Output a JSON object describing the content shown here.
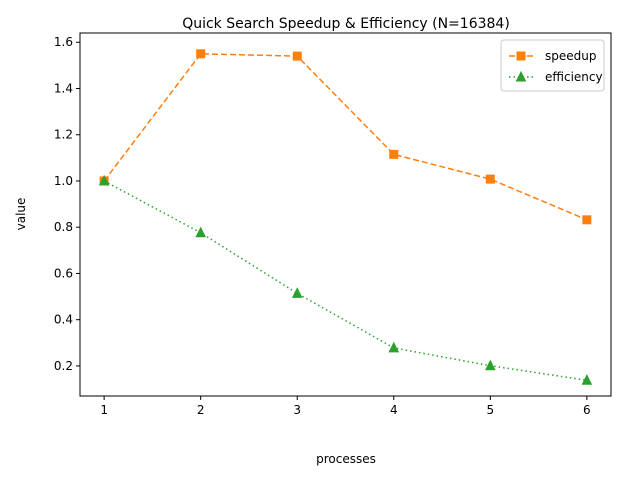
{
  "chart_data": {
    "type": "line",
    "title": "Quick Search Speedup & Efficiency (N=16384)",
    "xlabel": "processes",
    "ylabel": "value",
    "x": [
      1,
      2,
      3,
      4,
      5,
      6
    ],
    "x_ticks": [
      "1",
      "2",
      "3",
      "4",
      "5",
      "6"
    ],
    "y_ticks": [
      "0.2",
      "0.4",
      "0.6",
      "0.8",
      "1.0",
      "1.2",
      "1.4",
      "1.6"
    ],
    "xlim": [
      0.75,
      6.25
    ],
    "ylim": [
      0.07,
      1.64
    ],
    "grid": false,
    "legend_position": "top-right",
    "series": [
      {
        "name": "speedup",
        "values": [
          1.0,
          1.55,
          1.54,
          1.115,
          1.008,
          0.832
        ],
        "color": "#ff7f0e",
        "marker": "square",
        "linestyle": "dashed"
      },
      {
        "name": "efficiency",
        "values": [
          1.0,
          0.776,
          0.514,
          0.278,
          0.201,
          0.138
        ],
        "color": "#2ca02c",
        "marker": "triangle",
        "linestyle": "dotted"
      }
    ]
  }
}
